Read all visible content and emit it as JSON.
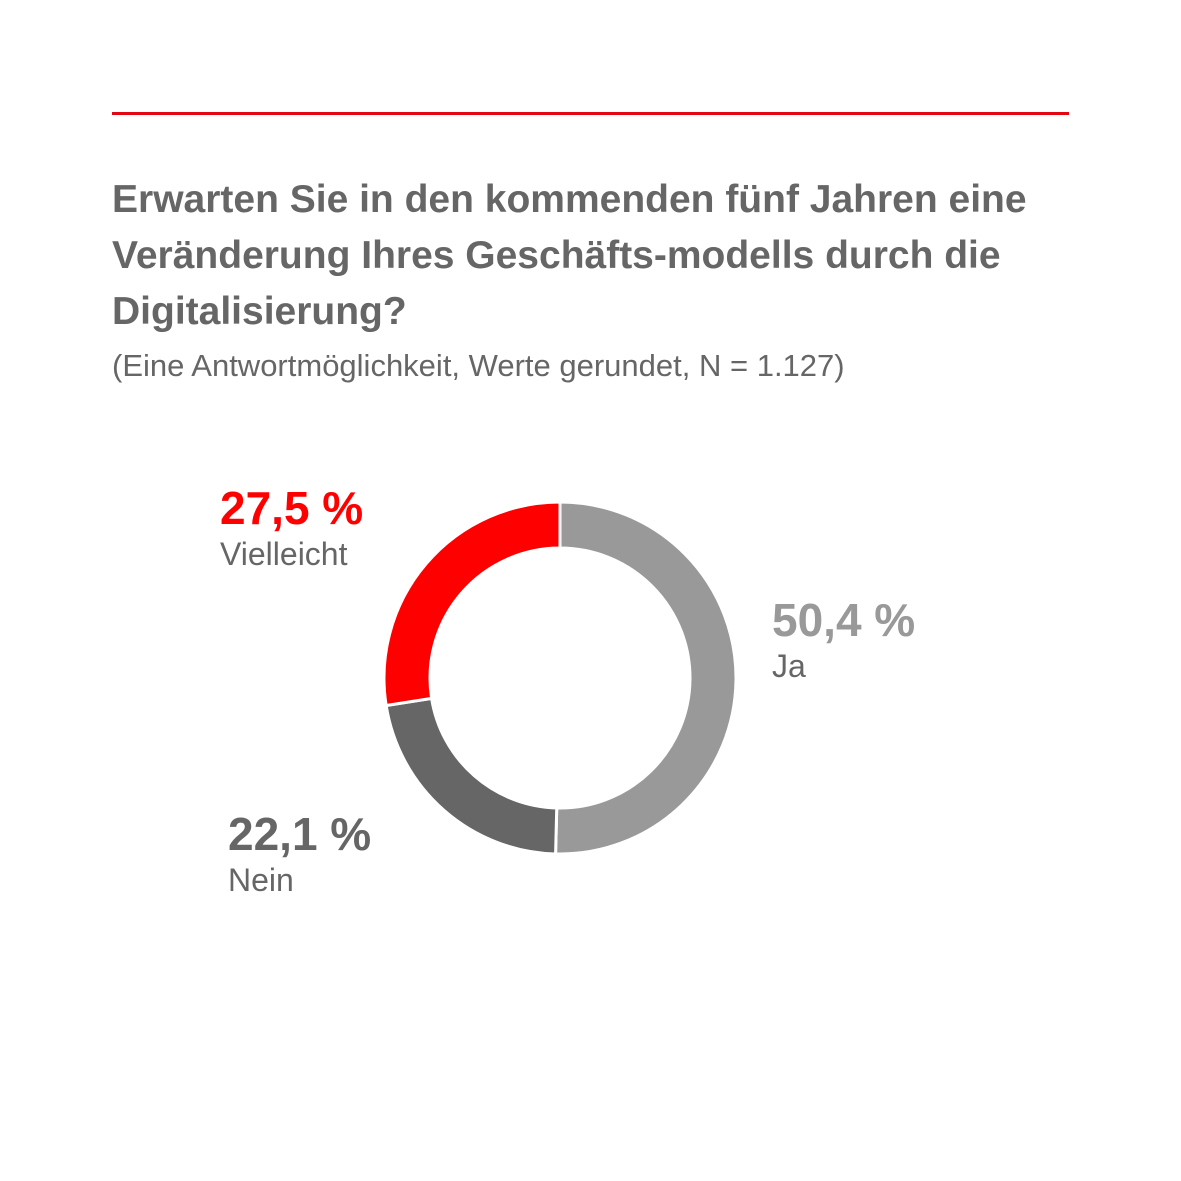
{
  "chart_data": {
    "type": "pie",
    "variant": "donut",
    "title": "Erwarten Sie in den kommenden fünf Jahren eine Veränderung Ihres Geschäfts-modells durch die Digitalisierung?",
    "subtitle": "(Eine Antwortmöglichkeit, Werte gerundet, N = 1.127)",
    "slices": [
      {
        "name": "Ja",
        "value": 50.4,
        "label": "50,4 %",
        "color": "#999999"
      },
      {
        "name": "Nein",
        "value": 22.1,
        "label": "22,1 %",
        "color": "#666666"
      },
      {
        "name": "Vielleicht",
        "value": 27.5,
        "label": "27,5 %",
        "color": "#ff0000"
      }
    ]
  },
  "accent_color": "#e30613"
}
